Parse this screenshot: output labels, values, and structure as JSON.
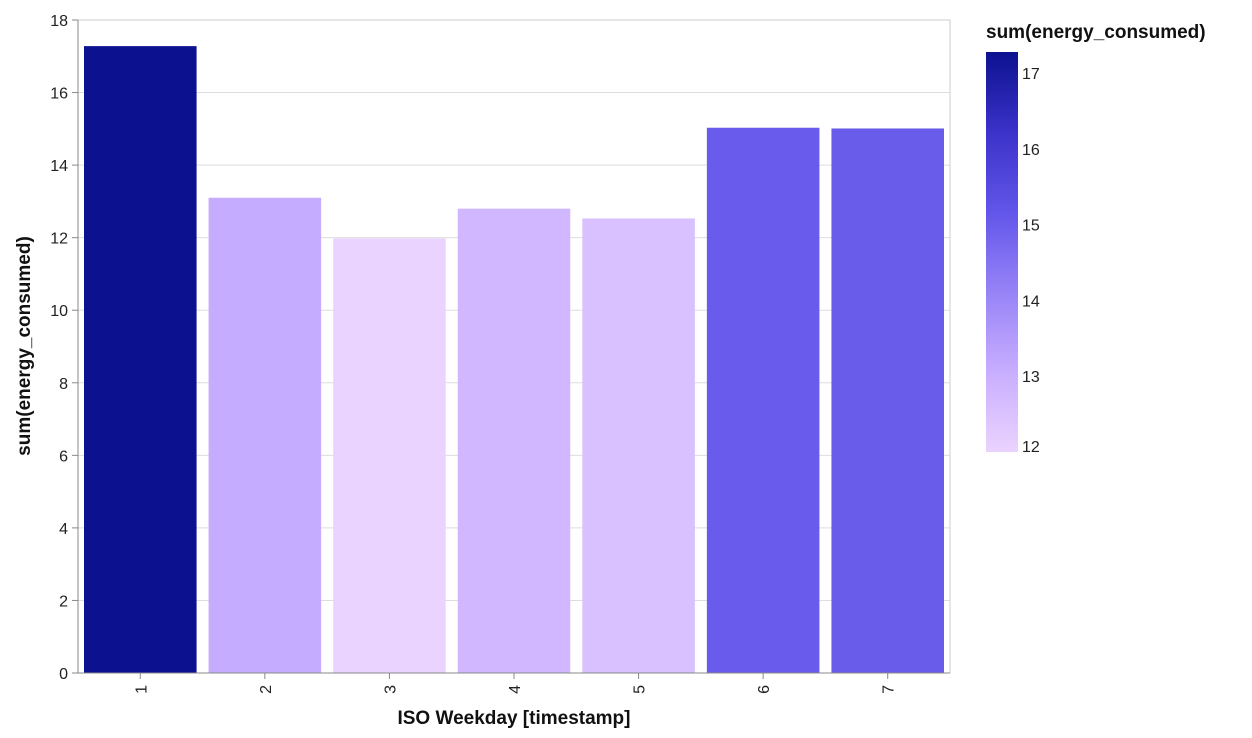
{
  "chart_data": {
    "type": "bar",
    "categories": [
      "1",
      "2",
      "3",
      "4",
      "5",
      "6",
      "7"
    ],
    "values": [
      17.28,
      13.1,
      11.98,
      12.8,
      12.53,
      15.03,
      15.01
    ],
    "xlabel": "ISO Weekday [timestamp]",
    "ylabel": "sum(energy_consumed)",
    "ylim": [
      0,
      18
    ],
    "yticks": [
      "0",
      "2",
      "4",
      "6",
      "8",
      "10",
      "12",
      "14",
      "16",
      "18"
    ],
    "grid": true,
    "legend": {
      "title": "sum(energy_consumed)",
      "position": "right",
      "domain": [
        12,
        17.28
      ],
      "labels": [
        "17",
        "16",
        "15",
        "14",
        "13",
        "12"
      ],
      "label_values": [
        17,
        16,
        15,
        14,
        13,
        12
      ]
    },
    "color_scale": [
      "#ebd3ff",
      "#c8aeff",
      "#8a78f4",
      "#6255e9",
      "#3b32c9",
      "#0c1190"
    ]
  }
}
